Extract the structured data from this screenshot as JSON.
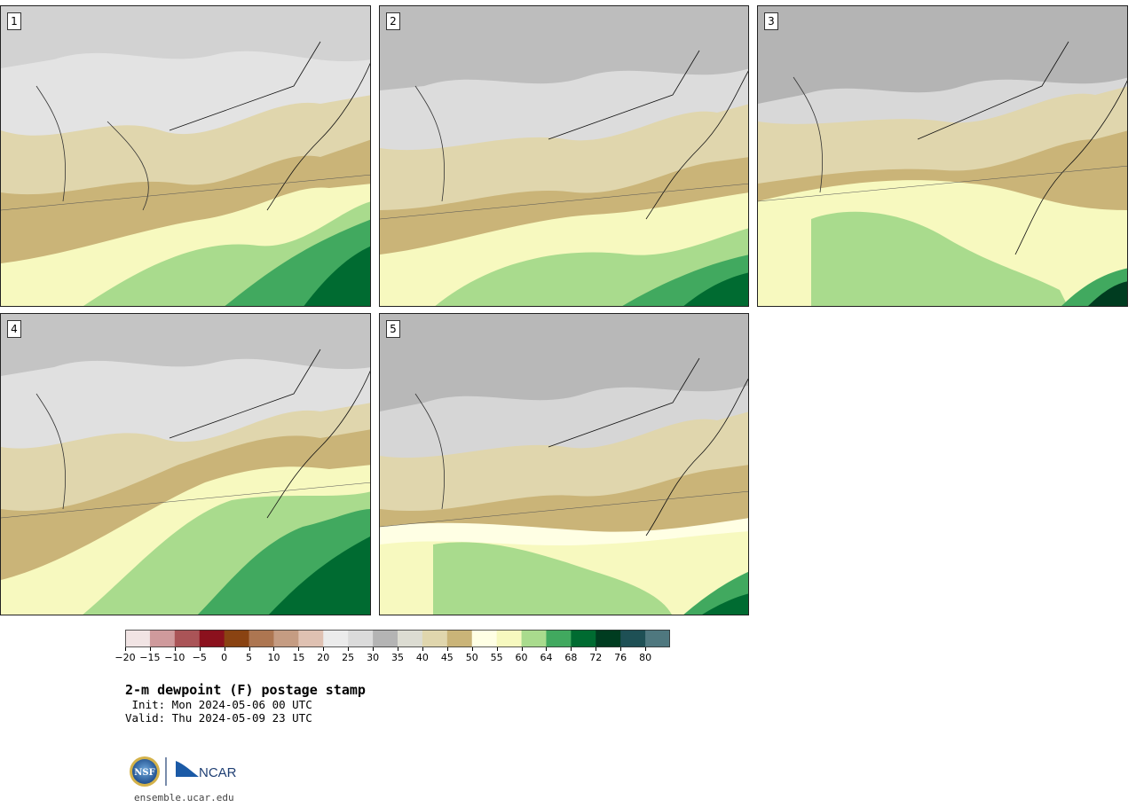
{
  "panels": [
    {
      "number": "1"
    },
    {
      "number": "2"
    },
    {
      "number": "3"
    },
    {
      "number": "4"
    },
    {
      "number": "5"
    }
  ],
  "colorbar": {
    "colors": [
      "#f1e4e4",
      "#cf9a9c",
      "#aa5457",
      "#8b111d",
      "#8a4312",
      "#ad7651",
      "#c59c82",
      "#dfc1b2",
      "#ebebeb",
      "#dbdbdb",
      "#b4b4b4",
      "#dcdcd2",
      "#e0d6ad",
      "#cab478",
      "#ffffe4",
      "#f7f9bf",
      "#a9db8d",
      "#41a95f",
      "#006b31",
      "#003c20",
      "#1e5055",
      "#4f787f"
    ],
    "tick_labels": [
      "−20",
      "−15",
      "−10",
      "−5",
      "0",
      "5",
      "10",
      "15",
      "20",
      "25",
      "30",
      "35",
      "40",
      "45",
      "50",
      "55",
      "60",
      "64",
      "68",
      "72",
      "76",
      "80"
    ]
  },
  "title": "2-m dewpoint (F) postage stamp",
  "init": " Init: Mon 2024-05-06 00 UTC",
  "valid": "Valid: Thu 2024-05-09 23 UTC",
  "logo": {
    "left_text": "NSF",
    "right_text": "NCAR"
  },
  "website": "ensemble.ucar.edu"
}
